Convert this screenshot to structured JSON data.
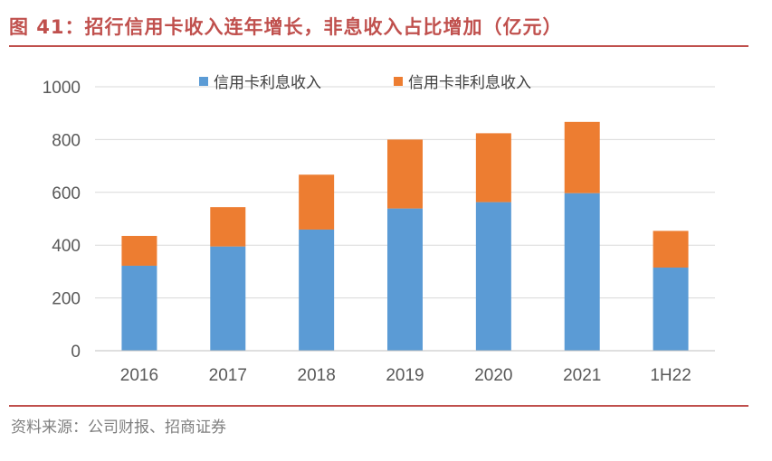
{
  "header": {
    "title": "图 41：招行信用卡收入连年增长，非息收入占比增加（亿元）"
  },
  "footer": {
    "source": "资料来源：公司财报、招商证券"
  },
  "chart_data": {
    "type": "bar",
    "stacked": true,
    "categories": [
      "2016",
      "2017",
      "2018",
      "2019",
      "2020",
      "2021",
      "1H22"
    ],
    "series": [
      {
        "name": "信用卡利息收入",
        "color": "#5b9bd5",
        "values": [
          322,
          395,
          459,
          539,
          563,
          597,
          315
        ]
      },
      {
        "name": "信用卡非利息收入",
        "color": "#ed7d31",
        "values": [
          113,
          149,
          208,
          261,
          261,
          270,
          139
        ]
      }
    ],
    "ylim": [
      0,
      1000
    ],
    "yticks": [
      0,
      200,
      400,
      600,
      800,
      1000
    ],
    "grid": true,
    "legend_position": "top"
  }
}
